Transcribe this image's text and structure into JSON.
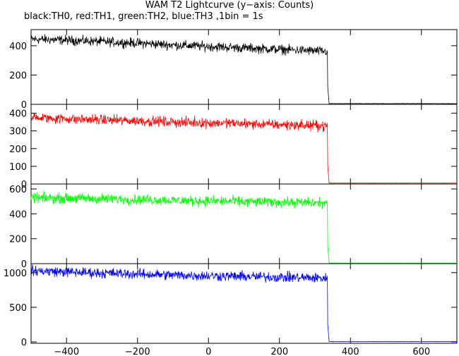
{
  "chart_data": {
    "type": "line",
    "title": "WAM T2 Lightcurve (y−axis: Counts)",
    "subtitle": "black:TH0, red:TH1, green:TH2, blue:TH3 ,1bin = 1s",
    "xlim": [
      -500,
      700
    ],
    "x_ticks": [
      -400,
      -200,
      0,
      200,
      400,
      600
    ],
    "x_tick_labels": [
      "−400",
      "−200",
      "0",
      "200",
      "400",
      "600"
    ],
    "grid": false,
    "panels": [
      {
        "series": "TH0",
        "color": "#000000",
        "ylim": [
          0,
          510
        ],
        "y_ticks": [
          0,
          200,
          400
        ],
        "y_tick_labels": [
          "0",
          "200",
          "400"
        ],
        "points": [
          [
            -500,
            445
          ],
          [
            -400,
            438
          ],
          [
            -300,
            428
          ],
          [
            -200,
            418
          ],
          [
            -100,
            405
          ],
          [
            0,
            395
          ],
          [
            100,
            385
          ],
          [
            200,
            375
          ],
          [
            300,
            365
          ],
          [
            335,
            360
          ],
          [
            336,
            120
          ],
          [
            340,
            5
          ],
          [
            700,
            5
          ]
        ]
      },
      {
        "series": "TH1",
        "color": "#ff0000",
        "ylim": [
          0,
          450
        ],
        "y_ticks": [
          0,
          100,
          200,
          300,
          400
        ],
        "y_tick_labels": [
          "0",
          "100",
          "200",
          "300",
          "400"
        ],
        "points": [
          [
            -500,
            375
          ],
          [
            -400,
            368
          ],
          [
            -300,
            362
          ],
          [
            -200,
            356
          ],
          [
            -100,
            350
          ],
          [
            0,
            345
          ],
          [
            100,
            340
          ],
          [
            200,
            335
          ],
          [
            300,
            330
          ],
          [
            335,
            328
          ],
          [
            336,
            100
          ],
          [
            340,
            5
          ],
          [
            700,
            5
          ]
        ]
      },
      {
        "series": "TH2",
        "color": "#00ff00",
        "ylim": [
          0,
          640
        ],
        "y_ticks": [
          0,
          200,
          400,
          600
        ],
        "y_tick_labels": [
          "0",
          "200",
          "400",
          "600"
        ],
        "points": [
          [
            -500,
            530
          ],
          [
            -400,
            525
          ],
          [
            -300,
            520
          ],
          [
            -200,
            515
          ],
          [
            -100,
            508
          ],
          [
            0,
            503
          ],
          [
            100,
            498
          ],
          [
            200,
            493
          ],
          [
            300,
            488
          ],
          [
            335,
            485
          ],
          [
            336,
            140
          ],
          [
            340,
            5
          ],
          [
            700,
            5
          ]
        ]
      },
      {
        "series": "TH3",
        "color": "#0000ff",
        "ylim": [
          -20,
          1130
        ],
        "y_ticks": [
          0,
          500,
          1000
        ],
        "y_tick_labels": [
          "0",
          "500",
          "1000"
        ],
        "points": [
          [
            -500,
            1030
          ],
          [
            -400,
            1010
          ],
          [
            -300,
            995
          ],
          [
            -200,
            980
          ],
          [
            -100,
            965
          ],
          [
            0,
            955
          ],
          [
            100,
            945
          ],
          [
            200,
            935
          ],
          [
            300,
            925
          ],
          [
            335,
            920
          ],
          [
            336,
            250
          ],
          [
            340,
            5
          ],
          [
            700,
            5
          ]
        ]
      }
    ]
  }
}
